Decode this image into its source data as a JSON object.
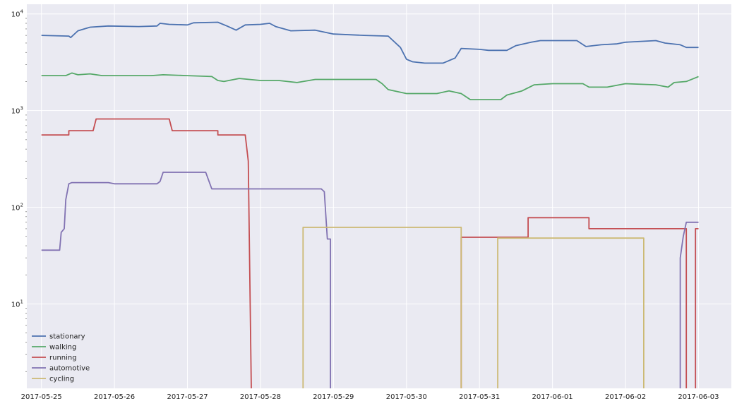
{
  "chart_data": {
    "type": "line",
    "title": "",
    "xlabel": "",
    "ylabel": "",
    "y_scale": "log",
    "grid": true,
    "legend_position": "bottom-left",
    "background_color": "#EAEAF2",
    "x_range": [
      "2017-05-24T19:12",
      "2017-06-03T10:48"
    ],
    "y_range": [
      1.34,
      12600
    ],
    "x_ticks": [
      "2017-05-25",
      "2017-05-26",
      "2017-05-27",
      "2017-05-28",
      "2017-05-29",
      "2017-05-30",
      "2017-05-31",
      "2017-06-01",
      "2017-06-02",
      "2017-06-03"
    ],
    "y_ticks": [
      {
        "value": 10,
        "base": "10",
        "exp": "1"
      },
      {
        "value": 100,
        "base": "10",
        "exp": "2"
      },
      {
        "value": 1000,
        "base": "10",
        "exp": "3"
      },
      {
        "value": 10000,
        "base": "10",
        "exp": "4"
      }
    ],
    "series": [
      {
        "name": "stationary",
        "color": "#4C72B0",
        "points": [
          [
            "2017-05-25T00:00",
            6000
          ],
          [
            "2017-05-25T09:00",
            5900
          ],
          [
            "2017-05-25T09:36",
            5700
          ],
          [
            "2017-05-25T12:00",
            6700
          ],
          [
            "2017-05-25T16:00",
            7300
          ],
          [
            "2017-05-25T22:00",
            7500
          ],
          [
            "2017-05-26T08:00",
            7400
          ],
          [
            "2017-05-26T14:00",
            7500
          ],
          [
            "2017-05-26T15:00",
            8000
          ],
          [
            "2017-05-26T18:00",
            7800
          ],
          [
            "2017-05-27T00:00",
            7700
          ],
          [
            "2017-05-27T02:00",
            8100
          ],
          [
            "2017-05-27T10:00",
            8200
          ],
          [
            "2017-05-27T13:00",
            7500
          ],
          [
            "2017-05-27T16:00",
            6800
          ],
          [
            "2017-05-27T19:00",
            7700
          ],
          [
            "2017-05-28T00:00",
            7800
          ],
          [
            "2017-05-28T03:00",
            8000
          ],
          [
            "2017-05-28T05:00",
            7400
          ],
          [
            "2017-05-28T10:00",
            6700
          ],
          [
            "2017-05-28T18:00",
            6800
          ],
          [
            "2017-05-29T00:00",
            6200
          ],
          [
            "2017-05-29T10:00",
            6000
          ],
          [
            "2017-05-29T18:00",
            5900
          ],
          [
            "2017-05-29T22:00",
            4500
          ],
          [
            "2017-05-30T00:00",
            3400
          ],
          [
            "2017-05-30T02:00",
            3200
          ],
          [
            "2017-05-30T06:00",
            3100
          ],
          [
            "2017-05-30T12:00",
            3100
          ],
          [
            "2017-05-30T16:00",
            3500
          ],
          [
            "2017-05-30T18:00",
            4400
          ],
          [
            "2017-05-31T00:00",
            4300
          ],
          [
            "2017-05-31T03:00",
            4200
          ],
          [
            "2017-05-31T09:00",
            4200
          ],
          [
            "2017-05-31T12:00",
            4700
          ],
          [
            "2017-05-31T17:00",
            5100
          ],
          [
            "2017-05-31T20:00",
            5300
          ],
          [
            "2017-06-01T08:00",
            5300
          ],
          [
            "2017-06-01T11:00",
            4600
          ],
          [
            "2017-06-01T16:00",
            4800
          ],
          [
            "2017-06-01T21:00",
            4900
          ],
          [
            "2017-06-02T00:00",
            5100
          ],
          [
            "2017-06-02T10:00",
            5300
          ],
          [
            "2017-06-02T13:00",
            5000
          ],
          [
            "2017-06-02T18:00",
            4800
          ],
          [
            "2017-06-02T20:00",
            4500
          ],
          [
            "2017-06-03T00:00",
            4500
          ]
        ]
      },
      {
        "name": "walking",
        "color": "#55A868",
        "points": [
          [
            "2017-05-25T00:00",
            2300
          ],
          [
            "2017-05-25T08:00",
            2300
          ],
          [
            "2017-05-25T10:00",
            2450
          ],
          [
            "2017-05-25T12:00",
            2350
          ],
          [
            "2017-05-25T16:00",
            2400
          ],
          [
            "2017-05-25T20:00",
            2300
          ],
          [
            "2017-05-26T00:00",
            2300
          ],
          [
            "2017-05-26T12:00",
            2300
          ],
          [
            "2017-05-26T16:00",
            2350
          ],
          [
            "2017-05-27T00:00",
            2300
          ],
          [
            "2017-05-27T08:00",
            2250
          ],
          [
            "2017-05-27T10:00",
            2050
          ],
          [
            "2017-05-27T12:00",
            2000
          ],
          [
            "2017-05-27T17:00",
            2150
          ],
          [
            "2017-05-28T00:00",
            2050
          ],
          [
            "2017-05-28T06:00",
            2050
          ],
          [
            "2017-05-28T12:00",
            1950
          ],
          [
            "2017-05-28T18:00",
            2100
          ],
          [
            "2017-05-29T14:00",
            2100
          ],
          [
            "2017-05-29T16:00",
            1900
          ],
          [
            "2017-05-29T18:00",
            1650
          ],
          [
            "2017-05-30T00:00",
            1500
          ],
          [
            "2017-05-30T10:00",
            1500
          ],
          [
            "2017-05-30T14:00",
            1600
          ],
          [
            "2017-05-30T18:00",
            1500
          ],
          [
            "2017-05-30T21:00",
            1300
          ],
          [
            "2017-05-31T07:00",
            1300
          ],
          [
            "2017-05-31T09:00",
            1450
          ],
          [
            "2017-05-31T14:00",
            1600
          ],
          [
            "2017-05-31T18:00",
            1850
          ],
          [
            "2017-06-01T00:00",
            1900
          ],
          [
            "2017-06-01T10:00",
            1900
          ],
          [
            "2017-06-01T12:00",
            1750
          ],
          [
            "2017-06-01T18:00",
            1750
          ],
          [
            "2017-06-02T00:00",
            1900
          ],
          [
            "2017-06-02T10:00",
            1850
          ],
          [
            "2017-06-02T14:00",
            1750
          ],
          [
            "2017-06-02T16:00",
            1950
          ],
          [
            "2017-06-02T20:00",
            2000
          ],
          [
            "2017-06-03T00:00",
            2250
          ]
        ]
      },
      {
        "name": "running",
        "color": "#C44E52",
        "points": [
          [
            "2017-05-25T00:00",
            560
          ],
          [
            "2017-05-25T09:00",
            560
          ],
          [
            "2017-05-25T09:00",
            620
          ],
          [
            "2017-05-25T17:00",
            620
          ],
          [
            "2017-05-25T18:00",
            820
          ],
          [
            "2017-05-26T18:00",
            820
          ],
          [
            "2017-05-26T19:00",
            620
          ],
          [
            "2017-05-27T10:00",
            620
          ],
          [
            "2017-05-27T10:00",
            560
          ],
          [
            "2017-05-27T19:00",
            560
          ],
          [
            "2017-05-27T20:00",
            300
          ],
          [
            "2017-05-27T21:00",
            1.3
          ],
          [
            "2017-05-30T18:00",
            1.3
          ],
          [
            "2017-05-30T18:00",
            49
          ],
          [
            "2017-05-31T16:00",
            49
          ],
          [
            "2017-05-31T16:00",
            78
          ],
          [
            "2017-06-01T12:00",
            78
          ],
          [
            "2017-06-01T12:00",
            60
          ],
          [
            "2017-06-02T20:00",
            60
          ],
          [
            "2017-06-02T20:00",
            1.3
          ],
          [
            "2017-06-02T23:00",
            1.3
          ],
          [
            "2017-06-02T23:00",
            60
          ],
          [
            "2017-06-03T00:00",
            60
          ]
        ]
      },
      {
        "name": "automotive",
        "color": "#8172B2",
        "points": [
          [
            "2017-05-25T00:00",
            36
          ],
          [
            "2017-05-25T06:00",
            36
          ],
          [
            "2017-05-25T06:30",
            55
          ],
          [
            "2017-05-25T07:30",
            60
          ],
          [
            "2017-05-25T08:00",
            120
          ],
          [
            "2017-05-25T09:00",
            175
          ],
          [
            "2017-05-25T10:00",
            180
          ],
          [
            "2017-05-25T22:00",
            180
          ],
          [
            "2017-05-26T00:00",
            175
          ],
          [
            "2017-05-26T14:00",
            175
          ],
          [
            "2017-05-26T15:00",
            185
          ],
          [
            "2017-05-26T16:00",
            230
          ],
          [
            "2017-05-27T06:00",
            230
          ],
          [
            "2017-05-27T08:00",
            155
          ],
          [
            "2017-05-28T20:00",
            155
          ],
          [
            "2017-05-28T21:00",
            145
          ],
          [
            "2017-05-28T22:00",
            47
          ],
          [
            "2017-05-28T23:00",
            47
          ],
          [
            "2017-05-28T23:00",
            1.3
          ],
          [
            "2017-06-02T18:00",
            1.3
          ],
          [
            "2017-06-02T18:00",
            30
          ],
          [
            "2017-06-02T19:00",
            50
          ],
          [
            "2017-06-02T20:00",
            70
          ],
          [
            "2017-06-03T00:00",
            70
          ]
        ]
      },
      {
        "name": "cycling",
        "color": "#CCB974",
        "points": [
          [
            "2017-05-28T14:00",
            1.3
          ],
          [
            "2017-05-28T14:00",
            62
          ],
          [
            "2017-05-30T18:00",
            62
          ],
          [
            "2017-05-30T18:00",
            1.3
          ],
          [
            "2017-05-31T06:00",
            1.3
          ],
          [
            "2017-05-31T06:00",
            48
          ],
          [
            "2017-06-02T06:00",
            48
          ],
          [
            "2017-06-02T06:00",
            1.3
          ]
        ]
      }
    ]
  }
}
